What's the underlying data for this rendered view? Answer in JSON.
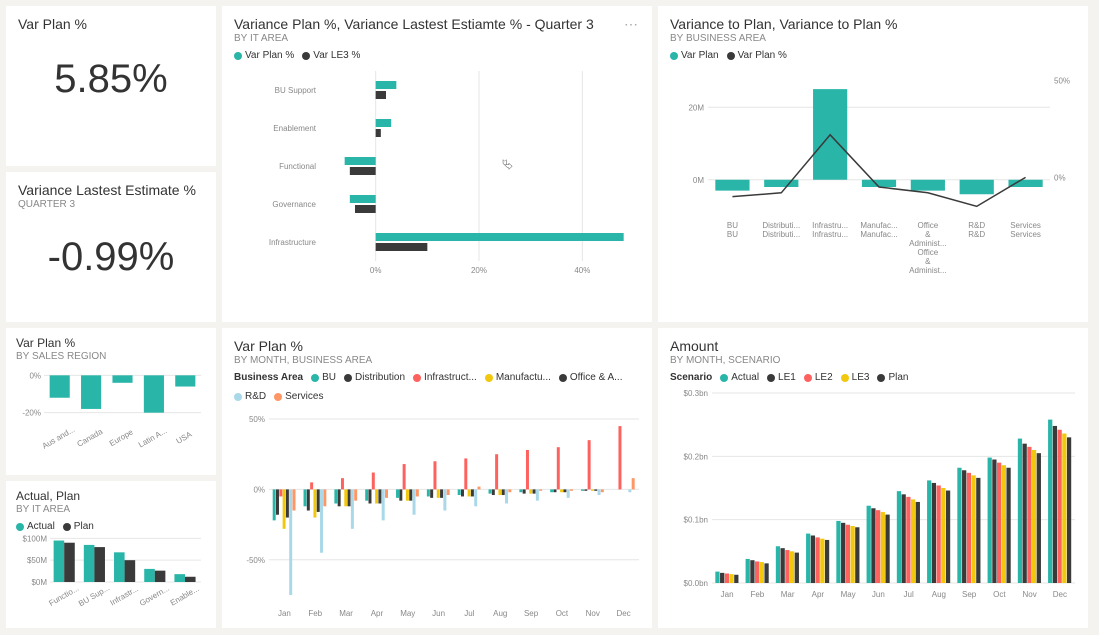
{
  "colors": {
    "teal": "#29b5a8",
    "dark": "#3a3a3a",
    "red": "#fd625e",
    "yellow": "#f2c80f",
    "lightblue": "#a9d8e8",
    "orange": "#fe9666",
    "grid": "#e6e6e6",
    "text": "#888888",
    "bg": "#f5f3f0"
  },
  "kpi1": {
    "title": "Var Plan %",
    "value": "5.85%"
  },
  "kpi2": {
    "title": "Variance Lastest Estimate %",
    "subtitle": "Quarter 3",
    "value": "-0.99%"
  },
  "hbar": {
    "title": "Variance Plan %, Variance Lastest Estiamte % - Quarter 3",
    "subtitle": "By IT Area",
    "legend": [
      {
        "label": "Var Plan %",
        "color": "#29b5a8"
      },
      {
        "label": "Var LE3 %",
        "color": "#3a3a3a"
      }
    ],
    "categories": [
      "BU Support",
      "Enablement",
      "Functional",
      "Governance",
      "Infrastructure"
    ],
    "series": [
      {
        "name": "Var Plan %",
        "color": "#29b5a8",
        "values": [
          4,
          3,
          -6,
          -5,
          48
        ]
      },
      {
        "name": "Var LE3 %",
        "color": "#3a3a3a",
        "values": [
          2,
          1,
          -5,
          -4,
          10
        ]
      }
    ],
    "xlim": [
      -10,
      50
    ],
    "xticks": [
      0,
      20,
      40
    ]
  },
  "combo": {
    "title": "Variance to Plan, Variance to Plan %",
    "subtitle": "By Business Area",
    "legend": [
      {
        "label": "Var Plan",
        "color": "#29b5a8"
      },
      {
        "label": "Var Plan %",
        "color": "#3a3a3a"
      }
    ],
    "categories": [
      "BU BU",
      "Distributi... Distributi...",
      "Infrastru... Infrastru...",
      "Manufac... Manufac...",
      "Office & Administ... Office & Administ...",
      "R&D R&D",
      "Services Services"
    ],
    "bars": {
      "color": "#29b5a8",
      "values": [
        -3,
        -2,
        25,
        -2,
        -3,
        -4,
        -2
      ]
    },
    "line": {
      "color": "#3a3a3a",
      "values": [
        -10,
        -8,
        22,
        -5,
        -8,
        -15,
        0
      ]
    },
    "ylim_left": [
      -10,
      30
    ],
    "yticks_left": [
      0,
      20
    ],
    "ylim_right": [
      -20,
      55
    ],
    "yticks_right": [
      0,
      50
    ]
  },
  "region": {
    "title": "Var Plan %",
    "subtitle": "By Sales Region",
    "categories": [
      "Aus and...",
      "Canada",
      "Europe",
      "Latin A...",
      "USA"
    ],
    "values": [
      -12,
      -18,
      -4,
      -20,
      -6
    ],
    "color": "#29b5a8",
    "ylim": [
      -25,
      5
    ],
    "yticks": [
      -20,
      0
    ]
  },
  "actualplan": {
    "title": "Actual, Plan",
    "subtitle": "By IT Area",
    "legend": [
      {
        "label": "Actual",
        "color": "#29b5a8"
      },
      {
        "label": "Plan",
        "color": "#3a3a3a"
      }
    ],
    "categories": [
      "Functio...",
      "BU Sup...",
      "Infrastr...",
      "Govern...",
      "Enable..."
    ],
    "series": [
      {
        "color": "#29b5a8",
        "values": [
          95,
          85,
          68,
          30,
          18
        ]
      },
      {
        "color": "#3a3a3a",
        "values": [
          90,
          80,
          50,
          26,
          12
        ]
      }
    ],
    "ylim": [
      0,
      110
    ],
    "yticks": [
      0,
      50,
      100
    ],
    "ytick_labels": [
      "$0M",
      "$50M",
      "$100M"
    ]
  },
  "monthba": {
    "title": "Var Plan %",
    "subtitle": "By Month, Business Area",
    "legend_label": "Business Area",
    "legend": [
      {
        "label": "BU",
        "color": "#29b5a8"
      },
      {
        "label": "Distribution",
        "color": "#3a3a3a"
      },
      {
        "label": "Infrastruct...",
        "color": "#fd625e"
      },
      {
        "label": "Manufactu...",
        "color": "#f2c80f"
      },
      {
        "label": "Office & A...",
        "color": "#3a3a3a"
      },
      {
        "label": "R&D",
        "color": "#a9d8e8"
      },
      {
        "label": "Services",
        "color": "#fe9666"
      }
    ],
    "months": [
      "Jan",
      "Feb",
      "Mar",
      "Apr",
      "May",
      "Jun",
      "Jul",
      "Aug",
      "Sep",
      "Oct",
      "Nov",
      "Dec"
    ],
    "ylim": [
      -80,
      55
    ],
    "yticks": [
      -50,
      0,
      50
    ],
    "series": [
      {
        "color": "#29b5a8",
        "values": [
          -22,
          -12,
          -10,
          -8,
          -6,
          -5,
          -4,
          -3,
          -2,
          -2,
          -1,
          0
        ]
      },
      {
        "color": "#3a3a3a",
        "values": [
          -18,
          -15,
          -12,
          -10,
          -8,
          -6,
          -5,
          -4,
          -3,
          -2,
          -1,
          0
        ]
      },
      {
        "color": "#fd625e",
        "values": [
          -5,
          5,
          8,
          12,
          18,
          20,
          22,
          25,
          28,
          30,
          35,
          45
        ]
      },
      {
        "color": "#f2c80f",
        "values": [
          -28,
          -20,
          -12,
          -10,
          -8,
          -6,
          -5,
          -4,
          -3,
          -2,
          -1,
          0
        ]
      },
      {
        "color": "#3a3a3a",
        "values": [
          -20,
          -16,
          -12,
          -10,
          -8,
          -6,
          -5,
          -4,
          -3,
          -2,
          -1,
          0
        ]
      },
      {
        "color": "#a9d8e8",
        "values": [
          -75,
          -45,
          -28,
          -22,
          -18,
          -15,
          -12,
          -10,
          -8,
          -6,
          -4,
          -2
        ]
      },
      {
        "color": "#fe9666",
        "values": [
          -15,
          -12,
          -8,
          -6,
          -5,
          -4,
          2,
          -2,
          -1,
          -1,
          -2,
          8
        ]
      }
    ]
  },
  "amount": {
    "title": "Amount",
    "subtitle": "By Month, Scenario",
    "legend_label": "Scenario",
    "legend": [
      {
        "label": "Actual",
        "color": "#29b5a8"
      },
      {
        "label": "LE1",
        "color": "#3a3a3a"
      },
      {
        "label": "LE2",
        "color": "#fd625e"
      },
      {
        "label": "LE3",
        "color": "#f2c80f"
      },
      {
        "label": "Plan",
        "color": "#3a3a3a"
      }
    ],
    "months": [
      "Jan",
      "Feb",
      "Mar",
      "Apr",
      "May",
      "Jun",
      "Jul",
      "Aug",
      "Sep",
      "Oct",
      "Nov",
      "Dec"
    ],
    "ylim": [
      0,
      0.3
    ],
    "yticks": [
      0,
      0.1,
      0.2,
      0.3
    ],
    "ytick_labels": [
      "$0.0bn",
      "$0.1bn",
      "$0.2bn",
      "$0.3bn"
    ],
    "series": [
      {
        "color": "#29b5a8",
        "values": [
          0.018,
          0.038,
          0.058,
          0.078,
          0.098,
          0.122,
          0.145,
          0.162,
          0.182,
          0.198,
          0.228,
          0.258
        ]
      },
      {
        "color": "#3a3a3a",
        "values": [
          0.016,
          0.036,
          0.055,
          0.075,
          0.095,
          0.118,
          0.14,
          0.158,
          0.178,
          0.195,
          0.22,
          0.248
        ]
      },
      {
        "color": "#fd625e",
        "values": [
          0.015,
          0.034,
          0.052,
          0.072,
          0.092,
          0.115,
          0.136,
          0.154,
          0.174,
          0.19,
          0.215,
          0.242
        ]
      },
      {
        "color": "#f2c80f",
        "values": [
          0.014,
          0.033,
          0.05,
          0.07,
          0.09,
          0.112,
          0.132,
          0.15,
          0.17,
          0.186,
          0.21,
          0.236
        ]
      },
      {
        "color": "#3a3a3a",
        "values": [
          0.013,
          0.031,
          0.048,
          0.068,
          0.088,
          0.108,
          0.128,
          0.146,
          0.166,
          0.182,
          0.205,
          0.23
        ]
      }
    ]
  }
}
